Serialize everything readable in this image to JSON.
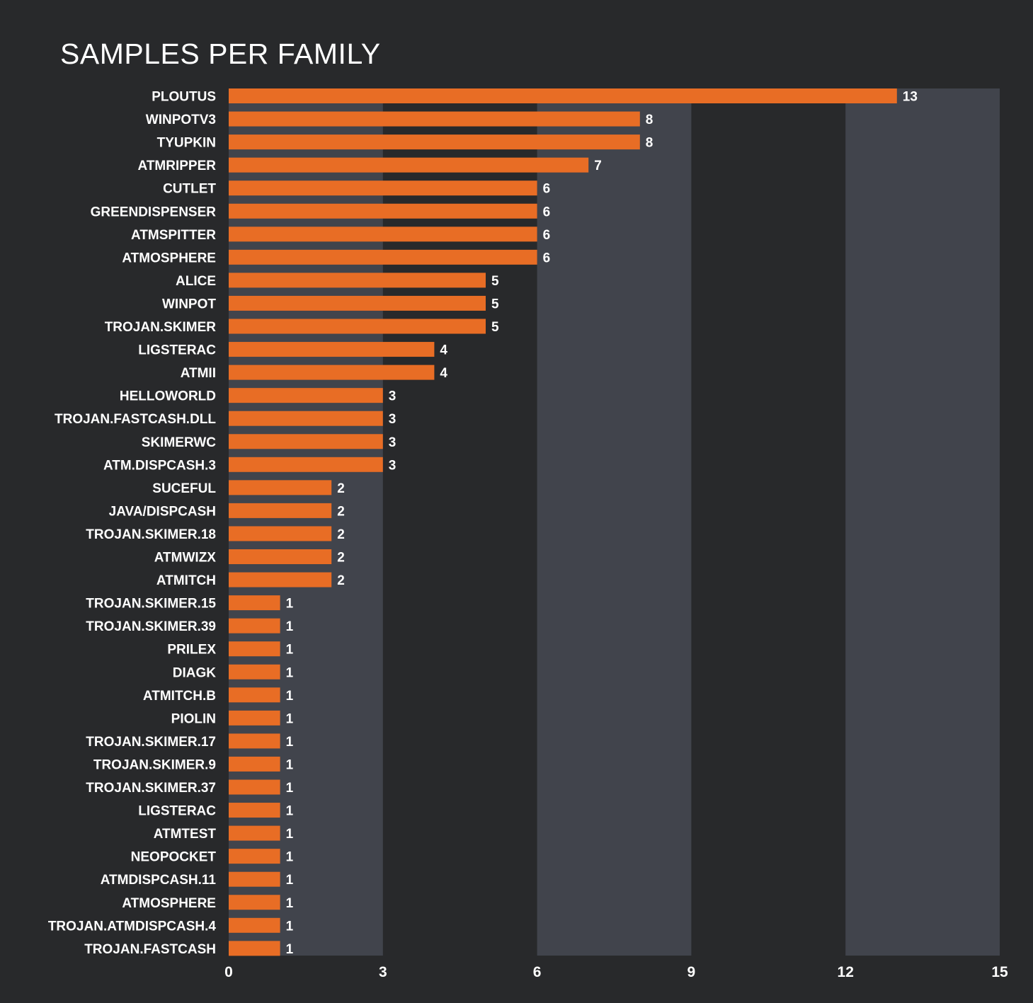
{
  "chart_data": {
    "type": "bar",
    "orientation": "horizontal",
    "title": "SAMPLES PER FAMILY",
    "xlabel": "",
    "ylabel": "",
    "xlim": [
      0,
      15
    ],
    "xticks": [
      0,
      3,
      6,
      9,
      12,
      15
    ],
    "grid": "alternating vertical bands",
    "categories": [
      "PLOUTUS",
      "WINPOTV3",
      "TYUPKIN",
      "ATMRIPPER",
      "CUTLET",
      "GREENDISPENSER",
      "ATMSPITTER",
      "ATMOSPHERE",
      "ALICE",
      "WINPOT",
      "TROJAN.SKIMER",
      "LIGSTERAC",
      "ATMII",
      "HELLOWORLD",
      "TROJAN.FASTCASH.DLL",
      "SKIMERWC",
      "ATM.DISPCASH.3",
      "SUCEFUL",
      "JAVA/DISPCASH",
      "TROJAN.SKIMER.18",
      "ATMWIZX",
      "ATMITCH",
      "TROJAN.SKIMER.15",
      "TROJAN.SKIMER.39",
      "PRILEX",
      "DIAGK",
      "ATMITCH.B",
      "PIOLIN",
      "TROJAN.SKIMER.17",
      "TROJAN.SKIMER.9",
      "TROJAN.SKIMER.37",
      "LIGSTERAC",
      "ATMTEST",
      "NEOPOCKET",
      "ATMDISPCASH.11",
      "ATMOSPHERE",
      "TROJAN.ATMDISPCASH.4",
      "TROJAN.FASTCASH"
    ],
    "values": [
      13,
      8,
      8,
      7,
      6,
      6,
      6,
      6,
      5,
      5,
      5,
      4,
      4,
      3,
      3,
      3,
      3,
      2,
      2,
      2,
      2,
      2,
      1,
      1,
      1,
      1,
      1,
      1,
      1,
      1,
      1,
      1,
      1,
      1,
      1,
      1,
      1,
      1
    ]
  },
  "colors": {
    "background": "#28292b",
    "band": "#41444c",
    "bar": "#e86d25",
    "text": "#ffffff"
  }
}
